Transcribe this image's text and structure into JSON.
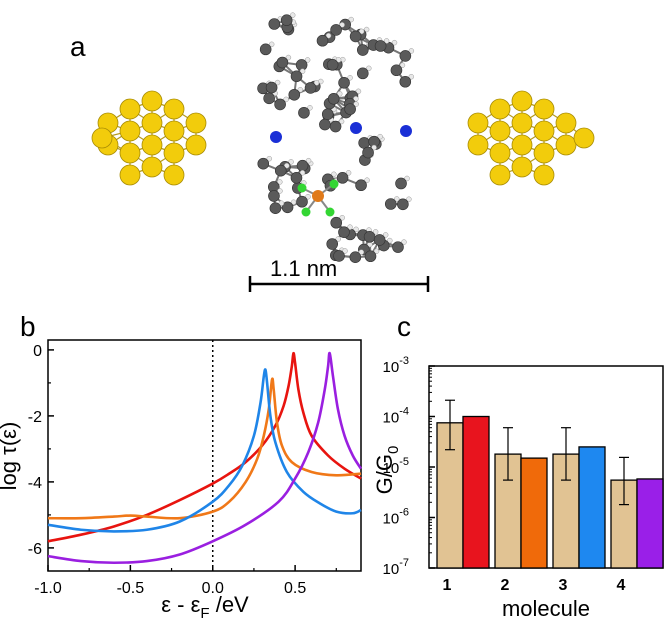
{
  "panels": {
    "a": {
      "label": "a",
      "scale_bar_text": "1.1 nm",
      "colors": {
        "gold": "#f2cc0c",
        "carbon": "#5a5a5a",
        "hydrogen": "#e8e8e8",
        "nitrogen": "#1a2fd6",
        "boron": "#e07a1a",
        "fluorine": "#33d633"
      }
    },
    "b": {
      "label": "b"
    },
    "c": {
      "label": "c"
    }
  },
  "chart_data": [
    {
      "panel": "b",
      "type": "line",
      "xlabel": "ε - ε",
      "xlabel_sub": "F",
      "xlabel_unit": " /eV",
      "ylabel": "log τ(ε)",
      "xlim": [
        -1.0,
        0.9
      ],
      "ylim": [
        -6.7,
        0.3
      ],
      "xticks": [
        -1.0,
        -0.5,
        0.0,
        0.5
      ],
      "xtick_labels": [
        "-1.0",
        "-0.5",
        "0.0",
        "0.5"
      ],
      "yticks": [
        0,
        -2,
        -4,
        -6
      ],
      "ytick_labels": [
        "0",
        "-2",
        "-4",
        "-6"
      ],
      "reference_line_x": 0.0,
      "series": [
        {
          "color": "#e8140f",
          "x": [
            -1.0,
            -0.8,
            -0.6,
            -0.4,
            -0.2,
            0.0,
            0.1,
            0.2,
            0.3,
            0.38,
            0.43,
            0.46,
            0.48,
            0.49,
            0.5,
            0.52,
            0.55,
            0.6,
            0.7,
            0.8,
            0.9
          ],
          "y": [
            -5.8,
            -5.6,
            -5.35,
            -5.0,
            -4.55,
            -4.05,
            -3.75,
            -3.4,
            -2.9,
            -2.3,
            -1.7,
            -1.1,
            -0.5,
            -0.1,
            -0.4,
            -1.2,
            -1.9,
            -2.6,
            -3.2,
            -3.6,
            -3.9
          ]
        },
        {
          "color": "#f07818",
          "x": [
            -1.0,
            -0.8,
            -0.6,
            -0.5,
            -0.4,
            -0.2,
            0.0,
            0.1,
            0.2,
            0.27,
            0.31,
            0.34,
            0.36,
            0.37,
            0.39,
            0.42,
            0.48,
            0.6,
            0.75,
            0.9
          ],
          "y": [
            -5.1,
            -5.1,
            -5.05,
            -5.02,
            -5.05,
            -5.1,
            -4.9,
            -4.6,
            -4.0,
            -3.3,
            -2.6,
            -1.8,
            -0.9,
            -1.2,
            -2.2,
            -2.9,
            -3.4,
            -3.7,
            -3.8,
            -3.75
          ]
        },
        {
          "color": "#1f85e8",
          "x": [
            -1.0,
            -0.8,
            -0.6,
            -0.4,
            -0.2,
            0.0,
            0.1,
            0.18,
            0.25,
            0.29,
            0.31,
            0.32,
            0.33,
            0.35,
            0.38,
            0.45,
            0.55,
            0.65,
            0.75,
            0.85,
            0.9
          ],
          "y": [
            -5.3,
            -5.45,
            -5.5,
            -5.45,
            -5.2,
            -4.6,
            -4.1,
            -3.5,
            -2.6,
            -1.6,
            -0.8,
            -0.6,
            -1.0,
            -2.0,
            -2.8,
            -3.7,
            -4.3,
            -4.65,
            -4.9,
            -4.95,
            -4.85
          ]
        },
        {
          "color": "#9a1fe0",
          "x": [
            -1.0,
            -0.8,
            -0.6,
            -0.4,
            -0.2,
            0.0,
            0.2,
            0.4,
            0.5,
            0.58,
            0.64,
            0.68,
            0.7,
            0.71,
            0.73,
            0.76,
            0.8,
            0.85,
            0.9
          ],
          "y": [
            -6.25,
            -6.4,
            -6.45,
            -6.4,
            -6.2,
            -5.8,
            -5.3,
            -4.6,
            -3.9,
            -3.1,
            -2.2,
            -1.2,
            -0.5,
            -0.1,
            -0.8,
            -1.8,
            -2.6,
            -3.2,
            -3.6
          ]
        }
      ]
    },
    {
      "panel": "c",
      "type": "bar",
      "log_scale": true,
      "ylabel": "G/G",
      "ylabel_sub": "0",
      "xlabel": "molecule",
      "ylim_exponents": [
        -7,
        -3
      ],
      "ytick_exponents": [
        -3,
        -4,
        -5,
        -6,
        -7
      ],
      "ytick_base": "10",
      "categories": [
        "1",
        "2",
        "3",
        "4"
      ],
      "series": [
        {
          "kind": "experiment",
          "color": "#e1c393",
          "values": [
            7.5e-05,
            1.8e-05,
            1.8e-05,
            5.5e-06
          ],
          "error_low": [
            2.2e-05,
            5.5e-06,
            5.5e-06,
            1.8e-06
          ],
          "error_high": [
            0.00021,
            6e-05,
            6e-05,
            1.55e-05
          ]
        },
        {
          "kind": "theory",
          "colors": [
            "#e8141e",
            "#f06a0a",
            "#1e88f0",
            "#9a1fe8"
          ],
          "values": [
            0.0001,
            1.5e-05,
            2.5e-05,
            5.8e-06
          ]
        }
      ]
    }
  ]
}
